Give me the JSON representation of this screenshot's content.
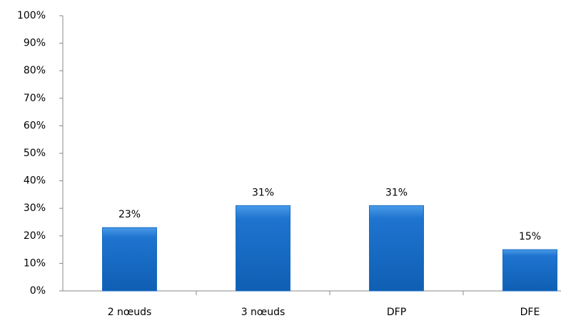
{
  "chart_data": {
    "type": "bar",
    "categories": [
      "2 nœuds",
      "3 nœuds",
      "DFP",
      "DFE"
    ],
    "values": [
      23,
      31,
      31,
      15
    ],
    "value_labels": [
      "23%",
      "31%",
      "31%",
      "15%"
    ],
    "color": "#1a6cc4",
    "ylim": [
      0,
      100
    ],
    "yticks": [
      {
        "value": 0,
        "label": "0%"
      },
      {
        "value": 10,
        "label": "10%"
      },
      {
        "value": 20,
        "label": "20%"
      },
      {
        "value": 30,
        "label": "30%"
      },
      {
        "value": 40,
        "label": "40%"
      },
      {
        "value": 50,
        "label": "50%"
      },
      {
        "value": 60,
        "label": "60%"
      },
      {
        "value": 70,
        "label": "70%"
      },
      {
        "value": 80,
        "label": "80%"
      },
      {
        "value": 90,
        "label": "90%"
      },
      {
        "value": 100,
        "label": "100%"
      }
    ],
    "grid": false
  }
}
